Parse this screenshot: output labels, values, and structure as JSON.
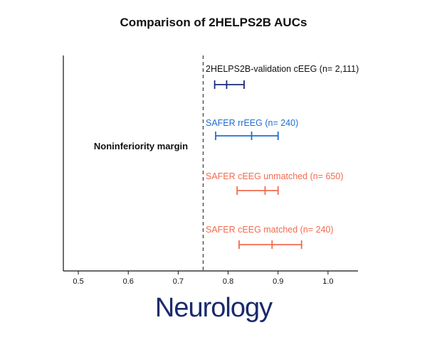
{
  "title": "Comparison of 2HELPS2B AUCs",
  "logo_text": "Neurology",
  "chart_data": {
    "type": "errorbar",
    "xlim": [
      0.47,
      1.06
    ],
    "xticks": [
      0.5,
      0.6,
      0.7,
      0.8,
      0.9,
      1.0
    ],
    "xtick_labels": [
      "0.5",
      "0.6",
      "0.7",
      "0.8",
      "0.9",
      "1.0"
    ],
    "reference_line": {
      "x": 0.75,
      "style": "dashed"
    },
    "annotation": "Noninferiority margin",
    "series": [
      {
        "name": "2HELPS2B-validation cEEG (n= 2,111)",
        "low": 0.773,
        "estimate": 0.797,
        "high": 0.832,
        "color": "#1b2a78"
      },
      {
        "name": "SAFER rrEEG (n= 240)",
        "low": 0.775,
        "estimate": 0.847,
        "high": 0.9,
        "color": "#1f6fd1"
      },
      {
        "name": "SAFER cEEG unmatched (n= 650)",
        "low": 0.818,
        "estimate": 0.874,
        "high": 0.9,
        "color": "#f26b4f"
      },
      {
        "name": "SAFER cEEG matched (n= 240)",
        "low": 0.822,
        "estimate": 0.888,
        "high": 0.947,
        "color": "#f26b4f"
      }
    ]
  }
}
